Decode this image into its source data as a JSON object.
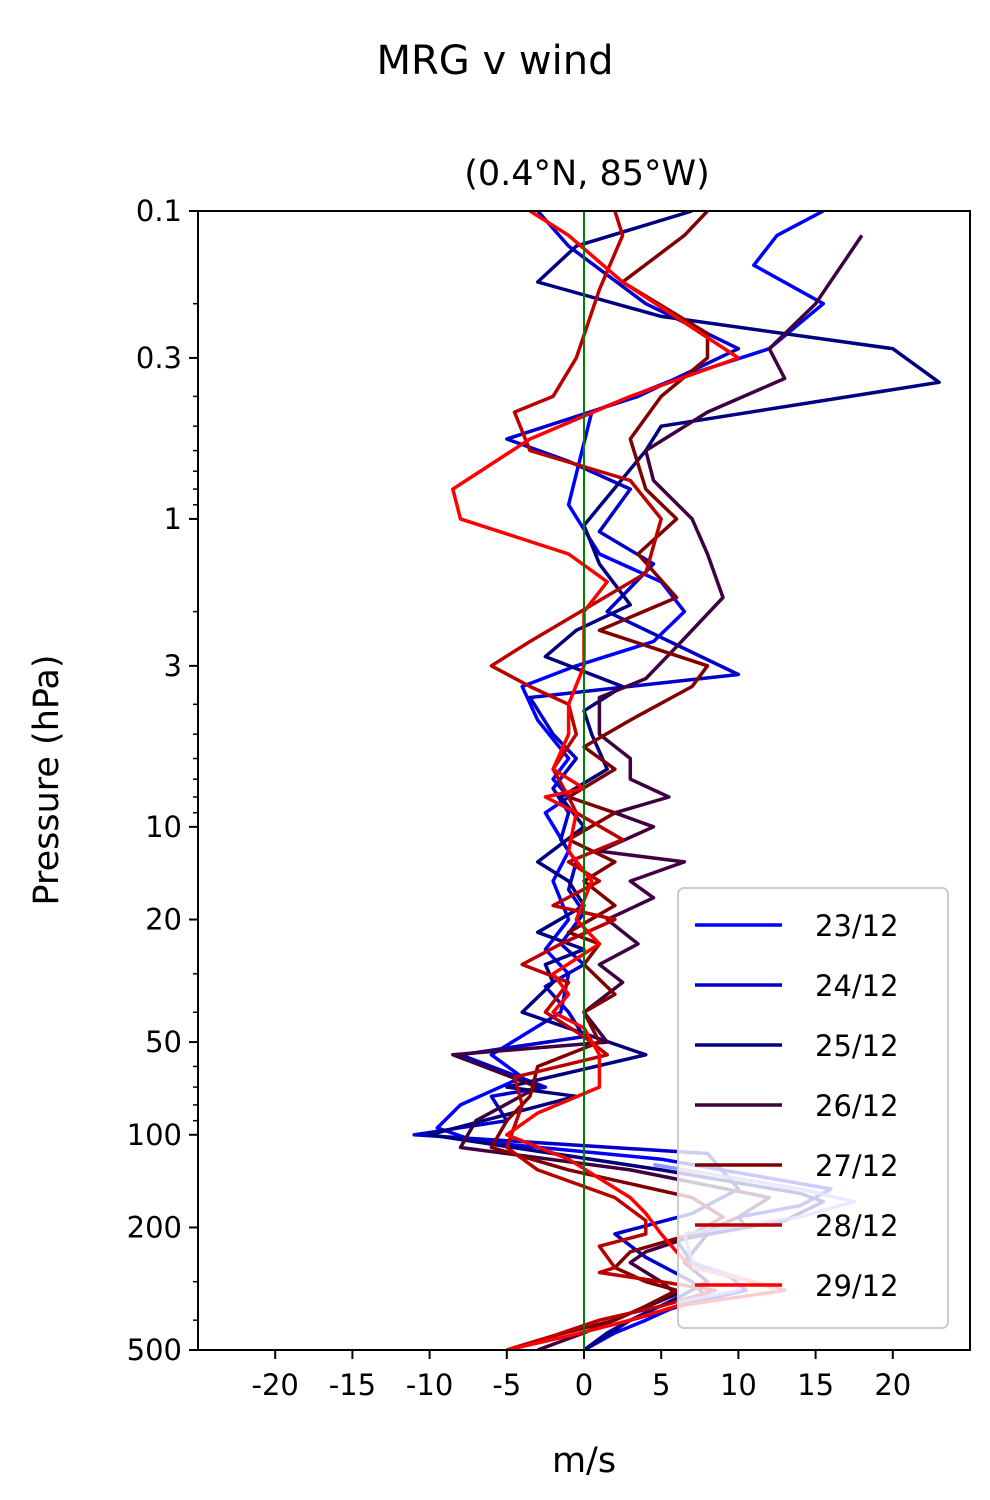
{
  "chart_data": {
    "type": "line",
    "suptitle": "MRG v wind",
    "title": "(0.4°N, 85°W)",
    "xlabel": "m/s",
    "ylabel": "Pressure (hPa)",
    "xlim": [
      -25,
      25
    ],
    "ylim": [
      500,
      0.1
    ],
    "yscale": "log",
    "x_ticks": [
      -20,
      -15,
      -10,
      -5,
      0,
      5,
      10,
      15,
      20
    ],
    "x_tick_labels": [
      "-20",
      "-15",
      "-10",
      "-5",
      "0",
      "5",
      "10",
      "15",
      "20"
    ],
    "y_ticks": [
      0.1,
      0.3,
      1,
      3,
      10,
      20,
      50,
      100,
      200,
      500
    ],
    "y_tick_labels": [
      "0.1",
      "0.3",
      "1",
      "3",
      "10",
      "20",
      "50",
      "100",
      "200",
      "500"
    ],
    "zero_line_color": "#008000",
    "legend_position": "lower-right",
    "grid": false,
    "series": [
      {
        "name": "23/12",
        "color": "#0000ff",
        "points": [
          [
            15.5,
            0.1
          ],
          [
            12.5,
            0.12
          ],
          [
            11,
            0.15
          ],
          [
            15.5,
            0.2
          ],
          [
            12,
            0.28
          ],
          [
            6,
            0.35
          ],
          [
            0.5,
            0.45
          ],
          [
            -1,
            0.9
          ],
          [
            1,
            1.3
          ],
          [
            5,
            1.6
          ],
          [
            6.5,
            2
          ],
          [
            4.5,
            2.5
          ],
          [
            -0.5,
            3
          ],
          [
            -4,
            3.5
          ],
          [
            -3,
            4.5
          ],
          [
            -1,
            6
          ],
          [
            -2,
            7
          ],
          [
            -1,
            8
          ],
          [
            -2.5,
            9
          ],
          [
            -1,
            12
          ],
          [
            -2,
            15
          ],
          [
            -1,
            20
          ],
          [
            -2.5,
            25
          ],
          [
            -1,
            30
          ],
          [
            -1.5,
            40
          ],
          [
            -6,
            55
          ],
          [
            -4,
            65
          ],
          [
            -8,
            80
          ],
          [
            -9.5,
            95
          ],
          [
            -7,
            105
          ],
          [
            5,
            120
          ],
          [
            16,
            150
          ],
          [
            14,
            170
          ],
          [
            10,
            185
          ],
          [
            10.5,
            200
          ],
          [
            6,
            220
          ],
          [
            7,
            260
          ],
          [
            9.5,
            290
          ],
          [
            10.5,
            320
          ],
          [
            6,
            360
          ],
          [
            4,
            400
          ],
          [
            2,
            440
          ],
          [
            0,
            500
          ]
        ]
      },
      {
        "name": "24/12",
        "color": "#0000cc",
        "points": [
          [
            -3,
            0.1
          ],
          [
            -1,
            0.13
          ],
          [
            4,
            0.2
          ],
          [
            10,
            0.28
          ],
          [
            3.5,
            0.4
          ],
          [
            -5,
            0.55
          ],
          [
            -1,
            0.65
          ],
          [
            3,
            0.8
          ],
          [
            1,
            1.1
          ],
          [
            4.5,
            1.4
          ],
          [
            1.5,
            2
          ],
          [
            10,
            3.2
          ],
          [
            -3.5,
            3.8
          ],
          [
            -2,
            5
          ],
          [
            -0.5,
            6
          ],
          [
            -2,
            7.5
          ],
          [
            -1,
            9
          ],
          [
            -1.5,
            11
          ],
          [
            -0.5,
            13
          ],
          [
            -1,
            16
          ],
          [
            0,
            19
          ],
          [
            -1.5,
            24
          ],
          [
            0,
            28
          ],
          [
            -2.5,
            33
          ],
          [
            -1,
            40
          ],
          [
            0,
            48
          ],
          [
            -8,
            55
          ],
          [
            -2.5,
            70
          ],
          [
            -6,
            75
          ],
          [
            -5,
            90
          ],
          [
            -11,
            100
          ],
          [
            8,
            115
          ],
          [
            10,
            150
          ],
          [
            7,
            180
          ],
          [
            2,
            210
          ],
          [
            4,
            250
          ],
          [
            7,
            300
          ],
          [
            8,
            340
          ],
          [
            3,
            400
          ],
          [
            1.5,
            440
          ],
          [
            0,
            500
          ]
        ]
      },
      {
        "name": "25/12",
        "color": "#000080",
        "points": [
          [
            7,
            0.1
          ],
          [
            -0.5,
            0.13
          ],
          [
            -3,
            0.17
          ],
          [
            5,
            0.22
          ],
          [
            20,
            0.28
          ],
          [
            23,
            0.36
          ],
          [
            5,
            0.5
          ],
          [
            4,
            0.6
          ],
          [
            1.5,
            0.85
          ],
          [
            0,
            1.05
          ],
          [
            1,
            1.4
          ],
          [
            3,
            1.9
          ],
          [
            -0.5,
            2.3
          ],
          [
            -2.5,
            2.8
          ],
          [
            2.5,
            3.5
          ],
          [
            0,
            4.2
          ],
          [
            0.5,
            5
          ],
          [
            1.5,
            6.5
          ],
          [
            -1.5,
            8
          ],
          [
            0,
            10
          ],
          [
            -3,
            13
          ],
          [
            -1,
            15
          ],
          [
            0,
            18
          ],
          [
            -3,
            22
          ],
          [
            0,
            25
          ],
          [
            -2.5,
            28
          ],
          [
            -2,
            32
          ],
          [
            -4,
            40
          ],
          [
            4,
            55
          ],
          [
            -5,
            70
          ],
          [
            -0.5,
            75
          ],
          [
            -10,
            100
          ],
          [
            5,
            130
          ],
          [
            14,
            155
          ],
          [
            15.5,
            165
          ],
          [
            13,
            190
          ],
          [
            8,
            210
          ],
          [
            6.5,
            260
          ],
          [
            8,
            300
          ],
          [
            6,
            340
          ],
          [
            3,
            400
          ],
          [
            0,
            500
          ]
        ]
      },
      {
        "name": "26/12",
        "color": "#400040",
        "points": [
          [
            18,
            0.12
          ],
          [
            15,
            0.2
          ],
          [
            12,
            0.28
          ],
          [
            13,
            0.35
          ],
          [
            8,
            0.45
          ],
          [
            4,
            0.6
          ],
          [
            4.5,
            0.75
          ],
          [
            7,
            1
          ],
          [
            8,
            1.3
          ],
          [
            9,
            1.8
          ],
          [
            6,
            2.6
          ],
          [
            4,
            3.3
          ],
          [
            1,
            3.8
          ],
          [
            1,
            5
          ],
          [
            3,
            6
          ],
          [
            3,
            7
          ],
          [
            5.5,
            8
          ],
          [
            2,
            9
          ],
          [
            4.5,
            10
          ],
          [
            1,
            12
          ],
          [
            6.5,
            13
          ],
          [
            3,
            15
          ],
          [
            4.5,
            17
          ],
          [
            1.5,
            20
          ],
          [
            3.5,
            24
          ],
          [
            1,
            28
          ],
          [
            2.5,
            32
          ],
          [
            0,
            40
          ],
          [
            1.5,
            50
          ],
          [
            -8.5,
            55
          ],
          [
            -3,
            70
          ],
          [
            -7,
            90
          ],
          [
            -8,
            110
          ],
          [
            3,
            130
          ],
          [
            12,
            160
          ],
          [
            10,
            185
          ],
          [
            7.5,
            210
          ],
          [
            4,
            240
          ],
          [
            3,
            260
          ],
          [
            5,
            300
          ],
          [
            6,
            330
          ],
          [
            3,
            380
          ],
          [
            0,
            440
          ],
          [
            -3,
            500
          ]
        ]
      },
      {
        "name": "27/12",
        "color": "#800000",
        "points": [
          [
            8,
            0.1
          ],
          [
            6.5,
            0.12
          ],
          [
            2.5,
            0.17
          ],
          [
            8,
            0.25
          ],
          [
            8,
            0.3
          ],
          [
            5,
            0.4
          ],
          [
            3,
            0.55
          ],
          [
            4,
            0.8
          ],
          [
            6,
            1
          ],
          [
            3.5,
            1.3
          ],
          [
            6,
            1.8
          ],
          [
            1,
            2.3
          ],
          [
            8,
            3
          ],
          [
            7,
            3.5
          ],
          [
            3,
            4.5
          ],
          [
            0,
            5.5
          ],
          [
            2,
            6.5
          ],
          [
            -1,
            8
          ],
          [
            2,
            9
          ],
          [
            -1,
            11
          ],
          [
            2,
            13
          ],
          [
            0,
            15
          ],
          [
            2,
            18
          ],
          [
            -1,
            22
          ],
          [
            1,
            24
          ],
          [
            0,
            28
          ],
          [
            2,
            35
          ],
          [
            0,
            40
          ],
          [
            1,
            50
          ],
          [
            -3,
            60
          ],
          [
            -3.5,
            75
          ],
          [
            -5,
            90
          ],
          [
            -6,
            110
          ],
          [
            -1,
            130
          ],
          [
            7,
            160
          ],
          [
            9,
            185
          ],
          [
            7,
            210
          ],
          [
            3,
            240
          ],
          [
            2,
            270
          ],
          [
            4,
            300
          ],
          [
            6,
            320
          ],
          [
            4,
            360
          ],
          [
            2,
            400
          ],
          [
            -2,
            450
          ],
          [
            -5,
            500
          ]
        ]
      },
      {
        "name": "28/12",
        "color": "#bb0000",
        "points": [
          [
            2,
            0.1
          ],
          [
            2.5,
            0.12
          ],
          [
            1,
            0.18
          ],
          [
            -0.5,
            0.3
          ],
          [
            -2,
            0.4
          ],
          [
            -4.5,
            0.45
          ],
          [
            -3.5,
            0.6
          ],
          [
            3,
            0.75
          ],
          [
            5,
            1
          ],
          [
            4,
            1.5
          ],
          [
            -3.5,
            2.5
          ],
          [
            -6,
            3
          ],
          [
            -3.5,
            3.5
          ],
          [
            -1,
            4
          ],
          [
            -0.5,
            5
          ],
          [
            -2,
            6.5
          ],
          [
            -1,
            8
          ],
          [
            -0.5,
            9
          ],
          [
            2.5,
            11
          ],
          [
            -1,
            13
          ],
          [
            1,
            15
          ],
          [
            -2,
            18
          ],
          [
            2,
            20
          ],
          [
            -1.5,
            24
          ],
          [
            -4,
            28
          ],
          [
            -1,
            32
          ],
          [
            -2.5,
            40
          ],
          [
            0,
            48
          ],
          [
            1.5,
            55
          ],
          [
            -4.5,
            65
          ],
          [
            -4,
            80
          ],
          [
            -5,
            110
          ],
          [
            -3,
            130
          ],
          [
            2,
            160
          ],
          [
            4,
            190
          ],
          [
            4,
            210
          ],
          [
            1,
            230
          ],
          [
            2,
            270
          ],
          [
            1,
            280
          ],
          [
            5,
            300
          ],
          [
            8.5,
            320
          ],
          [
            5,
            360
          ],
          [
            1,
            400
          ],
          [
            -2,
            450
          ],
          [
            -5,
            500
          ]
        ]
      },
      {
        "name": "29/12",
        "color": "#ff0000",
        "points": [
          [
            -3.5,
            0.1
          ],
          [
            -1,
            0.12
          ],
          [
            2.5,
            0.17
          ],
          [
            10,
            0.3
          ],
          [
            3,
            0.4
          ],
          [
            -3.5,
            0.55
          ],
          [
            -8.5,
            0.8
          ],
          [
            -8,
            1
          ],
          [
            -1,
            1.3
          ],
          [
            1.5,
            1.6
          ],
          [
            0,
            2
          ],
          [
            0,
            3
          ],
          [
            -1,
            4
          ],
          [
            -1,
            5
          ],
          [
            -2,
            6.5
          ],
          [
            0,
            7.5
          ],
          [
            -2.5,
            8
          ],
          [
            -0.5,
            9
          ],
          [
            -1,
            12
          ],
          [
            0.5,
            15
          ],
          [
            -0.5,
            20
          ],
          [
            1,
            24
          ],
          [
            -2,
            30
          ],
          [
            -1,
            35
          ],
          [
            -2,
            40
          ],
          [
            0,
            45
          ],
          [
            1,
            55
          ],
          [
            1,
            70
          ],
          [
            -3,
            85
          ],
          [
            -5,
            100
          ],
          [
            -1,
            120
          ],
          [
            3,
            160
          ],
          [
            4,
            180
          ],
          [
            5,
            210
          ],
          [
            6,
            240
          ],
          [
            7,
            270
          ],
          [
            11,
            300
          ],
          [
            13,
            320
          ],
          [
            6,
            360
          ],
          [
            3,
            400
          ],
          [
            -1,
            450
          ],
          [
            -5,
            500
          ]
        ]
      }
    ],
    "overlay_segments": [
      {
        "color": "#8080ff",
        "x": [
          [
            4.5,
            125
          ],
          [
            14,
            150
          ],
          [
            17.5,
            165
          ],
          [
            14,
            185
          ],
          [
            6.5,
            210
          ]
        ]
      },
      {
        "color": "#8080ff",
        "x": [
          [
            6.5,
            210
          ],
          [
            7,
            260
          ],
          [
            10,
            290
          ],
          [
            10,
            320
          ],
          [
            6,
            350
          ]
        ]
      },
      {
        "color": "#ff8080",
        "x": [
          [
            7,
            270
          ],
          [
            11,
            300
          ],
          [
            12.5,
            320
          ]
        ]
      }
    ]
  }
}
